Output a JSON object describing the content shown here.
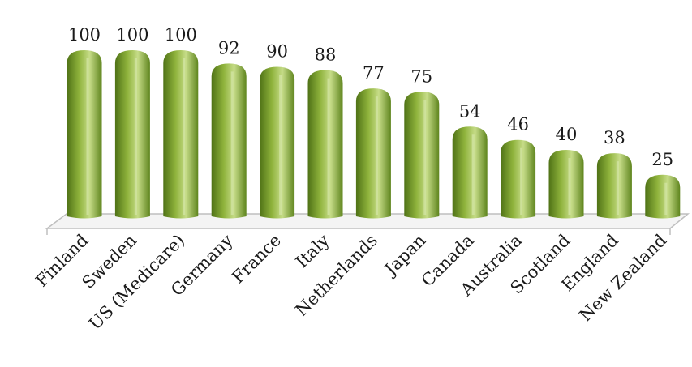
{
  "chart_data": {
    "type": "bar",
    "title": "",
    "xlabel": "",
    "ylabel": "",
    "ylim": [
      0,
      100
    ],
    "grid": false,
    "legend": "none",
    "categories": [
      "Finland",
      "Sweden",
      "US (Medicare)",
      "Germany",
      "France",
      "Italy",
      "Netherlands",
      "Japan",
      "Canada",
      "Australia",
      "Scotland",
      "England",
      "New Zealand"
    ],
    "values": [
      100,
      100,
      100,
      92,
      90,
      88,
      77,
      75,
      54,
      46,
      40,
      38,
      25
    ],
    "data_labels": [
      "100",
      "100",
      "100",
      "92",
      "90",
      "88",
      "77",
      "75",
      "54",
      "46",
      "40",
      "38",
      "25"
    ],
    "colors": {
      "bar_light": "#c6dc88",
      "bar_mid": "#8fb33c",
      "bar_dark": "#4f7216",
      "floor": "#bfbfbf"
    }
  }
}
